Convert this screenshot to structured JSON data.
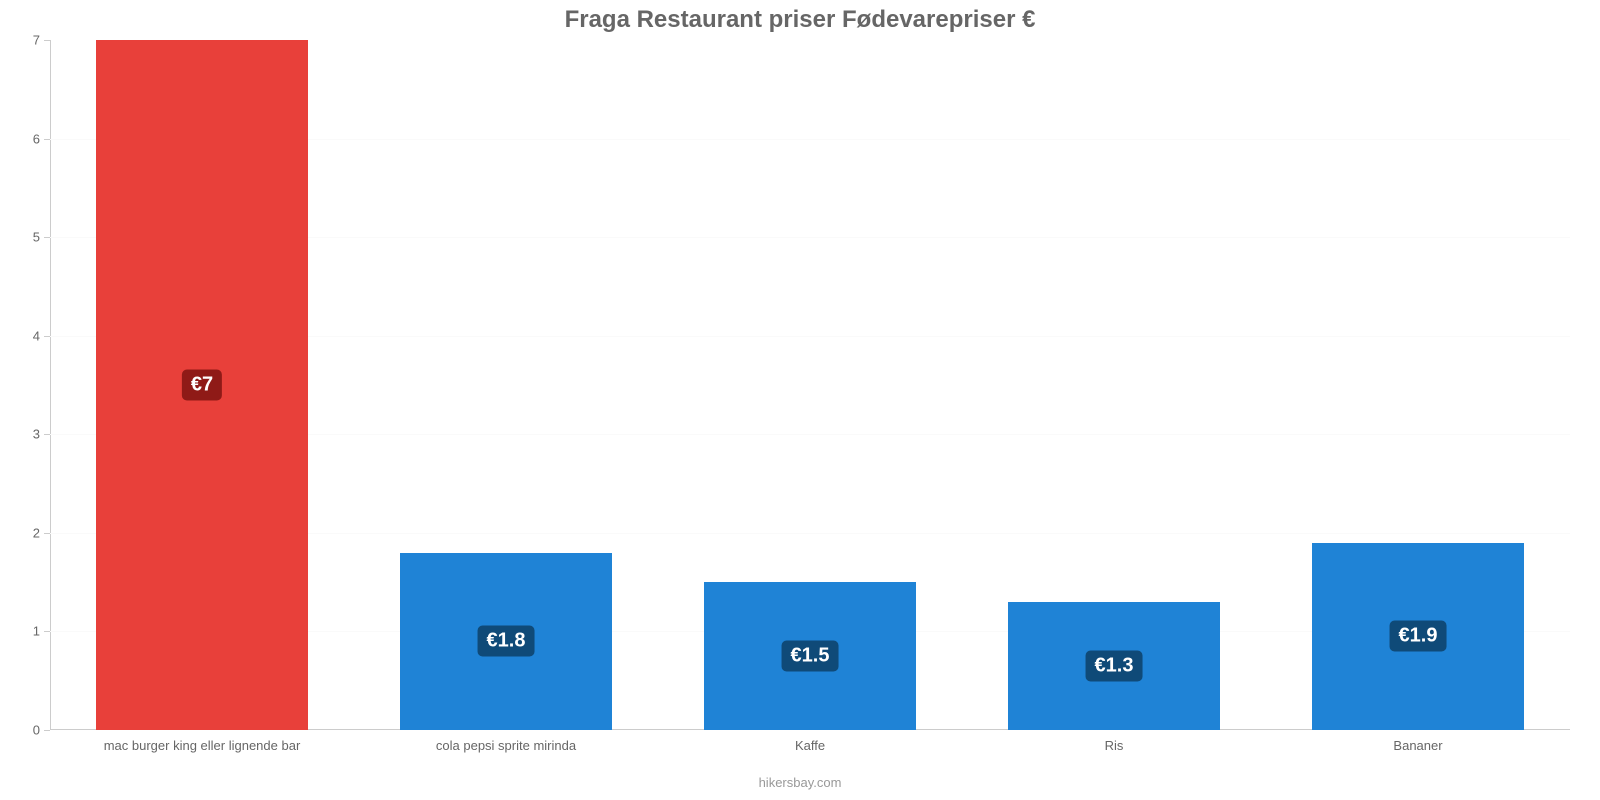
{
  "chart": {
    "type": "bar",
    "title": "Fraga Restaurant priser Fødevarepriser €",
    "title_color": "#666666",
    "title_fontsize": 24,
    "footer": "hikersbay.com",
    "footer_color": "#999999",
    "background_color": "#ffffff",
    "grid_color": "#fafafa",
    "axis_color": "#cccccc",
    "tick_label_color": "#666666",
    "tick_label_fontsize": 13,
    "value_label_fontsize": 20,
    "ylim_min": 0,
    "ylim_max": 7,
    "yticks": [
      0,
      1,
      2,
      3,
      4,
      5,
      6,
      7
    ],
    "bar_width_ratio": 0.7,
    "categories": [
      "mac burger king eller lignende bar",
      "cola pepsi sprite mirinda",
      "Kaffe",
      "Ris",
      "Bananer"
    ],
    "values": [
      7,
      1.8,
      1.5,
      1.3,
      1.9
    ],
    "value_labels": [
      "€7",
      "€1.8",
      "€1.5",
      "€1.3",
      "€1.9"
    ],
    "bar_colors": [
      "#e8403a",
      "#1f83d6",
      "#1f83d6",
      "#1f83d6",
      "#1f83d6"
    ],
    "badge_colors": [
      "#8f1a17",
      "#0f4a78",
      "#0f4a78",
      "#0f4a78",
      "#0f4a78"
    ]
  }
}
